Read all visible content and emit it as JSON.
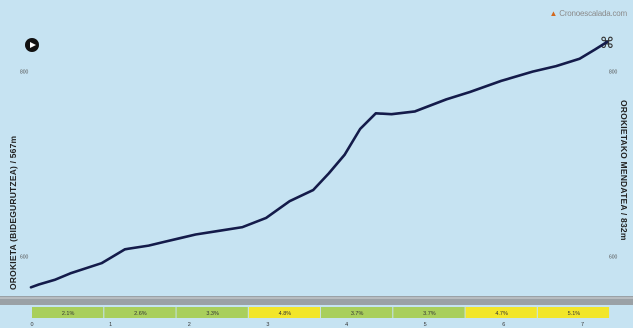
{
  "brand": {
    "text": "Cronoescalada.com"
  },
  "icons": {
    "play": "play-icon",
    "share": "knot-icon"
  },
  "labels": {
    "start": "OROKIETA (BIDEGURUTZEA) / 567m",
    "end": "OROKIETAKO MENDATEA / 832m"
  },
  "chart_data": {
    "type": "area",
    "title": "",
    "xlabel": "",
    "ylabel": "",
    "x": [
      0,
      0.1,
      0.3,
      0.5,
      0.9,
      1.2,
      1.5,
      1.7,
      1.9,
      2.1,
      2.4,
      2.7,
      3.0,
      3.3,
      3.6,
      3.8,
      4.0,
      4.2,
      4.4,
      4.6,
      4.9,
      5.3,
      5.6,
      6.0,
      6.4,
      6.7,
      7.0,
      7.2,
      7.35
    ],
    "y": [
      567,
      570,
      575,
      582,
      593,
      608,
      612,
      616,
      620,
      624,
      628,
      632,
      642,
      660,
      672,
      690,
      710,
      738,
      755,
      754,
      757,
      770,
      778,
      790,
      800,
      806,
      814,
      824,
      832
    ],
    "xlim": [
      0,
      7.35
    ],
    "ylim": [
      550,
      845
    ],
    "left_ticks": [
      {
        "label": "600",
        "value": 600
      },
      {
        "label": "800",
        "value": 800
      }
    ],
    "right_ticks": [
      {
        "label": "600",
        "value": 600
      },
      {
        "label": "800",
        "value": 800
      }
    ],
    "km_ticks": [
      {
        "label": "0",
        "value": 0
      },
      {
        "label": "1",
        "value": 1
      },
      {
        "label": "2",
        "value": 2
      },
      {
        "label": "3",
        "value": 3
      },
      {
        "label": "4",
        "value": 4
      },
      {
        "label": "5",
        "value": 5
      },
      {
        "label": "6",
        "value": 6
      },
      {
        "label": "7",
        "value": 7
      }
    ],
    "gradients": [
      {
        "label": "2.1%",
        "color": "#a9cf5c"
      },
      {
        "label": "2.6%",
        "color": "#a9cf5c"
      },
      {
        "label": "3.3%",
        "color": "#a9cf5c"
      },
      {
        "label": "4.8%",
        "color": "#f2e62a"
      },
      {
        "label": "3.7%",
        "color": "#a9cf5c"
      },
      {
        "label": "3.7%",
        "color": "#a9cf5c"
      },
      {
        "label": "4.7%",
        "color": "#f2e62a"
      },
      {
        "label": "5.1%",
        "color": "#f2e62a"
      }
    ],
    "colors": {
      "line": "#141b4a",
      "band": "#9aa1a6",
      "background": "#c6e3f2"
    }
  }
}
